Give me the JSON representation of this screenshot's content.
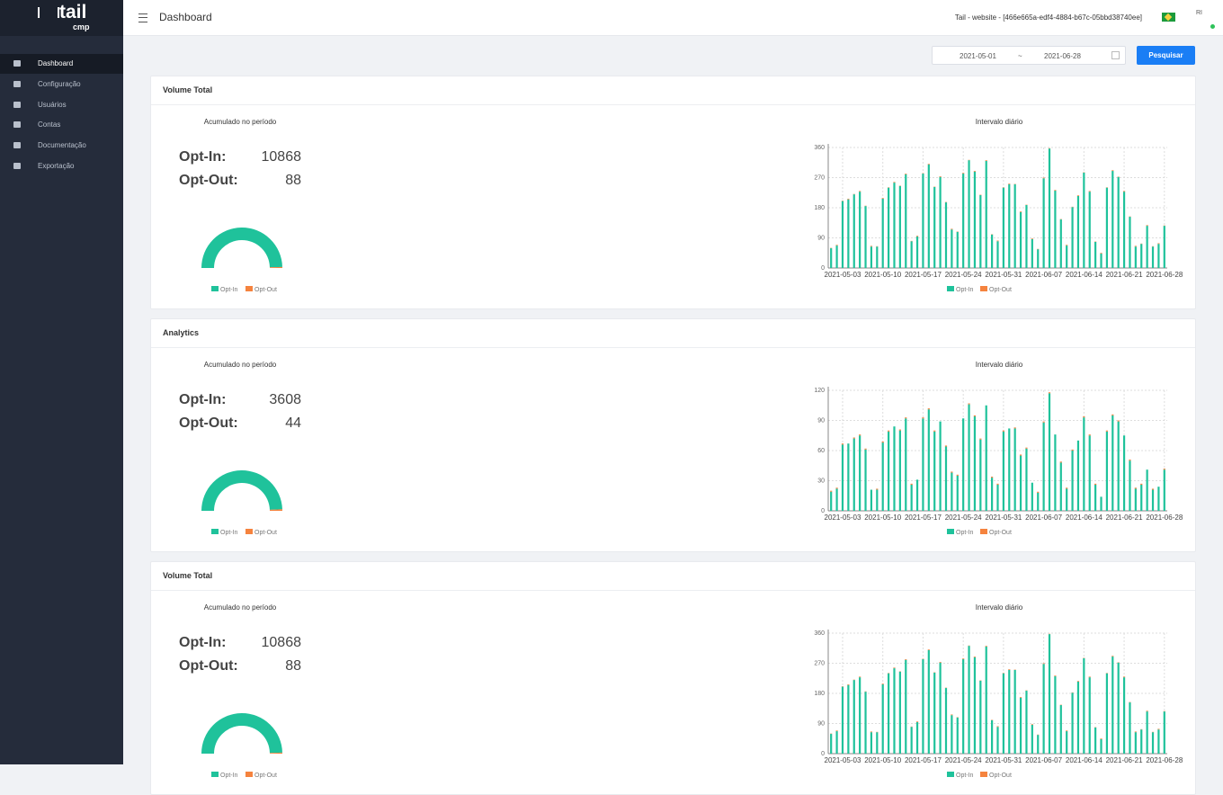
{
  "sidebar": {
    "brand": "tail",
    "brand_sub": "cmp",
    "nav": [
      "Dashboard",
      "Configuração",
      "Usuários",
      "Contas",
      "Documentação",
      "Exportação"
    ]
  },
  "header": {
    "title": "Dashboard",
    "site": "Tail - website - [466e665a-edf4-4884-b67c-05bbd38740ee]",
    "avatar": "RI"
  },
  "filter": {
    "start": "2021-05-01",
    "separator": "~",
    "end": "2021-06-28",
    "button": "Pesquisar"
  },
  "panels": [
    {
      "title": "Volume Total"
    },
    {
      "title": "Analytics"
    },
    {
      "title": "Volume Total"
    }
  ],
  "chart_data": [
    {
      "type": "gauge",
      "title": "Acumulado no período",
      "categories": [
        "Opt-In",
        "Opt-Out"
      ],
      "value_names": [
        "Opt-In:",
        "Opt-Out:"
      ],
      "values": [
        10868,
        88
      ],
      "colors": [
        "#1fc29b",
        "#f5833e"
      ]
    },
    {
      "type": "bar",
      "title": "Intervalo diário",
      "grid": true,
      "ylim": [
        0,
        360
      ],
      "yticks": [
        0,
        90,
        180,
        270,
        360
      ],
      "categories": [
        null,
        null,
        "2021-05-03",
        null,
        null,
        null,
        null,
        null,
        null,
        "2021-05-10",
        null,
        null,
        null,
        null,
        null,
        null,
        "2021-05-17",
        null,
        null,
        null,
        null,
        null,
        null,
        "2021-05-24",
        null,
        null,
        null,
        null,
        null,
        null,
        "2021-05-31",
        null,
        null,
        null,
        null,
        null,
        null,
        "2021-06-07",
        null,
        null,
        null,
        null,
        null,
        null,
        "2021-06-14",
        null,
        null,
        null,
        null,
        null,
        null,
        "2021-06-21",
        null,
        null,
        null,
        null,
        null,
        null,
        "2021-06-28"
      ],
      "series": [
        {
          "name": "Opt-In",
          "color": "#1fc29b",
          "values": [
            59,
            67,
            200,
            205,
            220,
            228,
            185,
            64,
            64,
            207,
            240,
            255,
            245,
            280,
            80,
            94,
            282,
            309,
            242,
            272,
            196,
            115,
            108,
            282,
            322,
            288,
            218,
            320,
            100,
            80,
            240,
            250,
            250,
            167,
            188,
            86,
            56,
            268,
            357,
            231,
            145,
            67,
            182,
            215,
            285,
            228,
            78,
            43,
            240,
            290,
            272,
            228,
            153,
            64,
            72,
            126,
            64,
            72,
            126
          ]
        },
        {
          "name": "Opt-Out",
          "color": "#f5833e",
          "values": [
            1,
            2,
            1,
            2,
            1,
            2,
            1,
            2,
            1,
            2,
            1,
            2,
            1,
            2,
            1,
            2,
            1,
            2,
            1,
            2,
            1,
            2,
            1,
            2,
            1,
            2,
            1,
            2,
            1,
            2,
            1,
            2,
            1,
            2,
            1,
            2,
            1,
            2,
            1,
            2,
            1,
            2,
            1,
            2,
            1,
            2,
            1,
            2,
            1,
            2,
            1,
            2,
            1,
            2,
            1,
            2,
            1,
            2,
            1
          ]
        }
      ]
    },
    {
      "type": "gauge",
      "title": "Acumulado no período",
      "categories": [
        "Opt-In",
        "Opt-Out"
      ],
      "value_names": [
        "Opt-In:",
        "Opt-Out:"
      ],
      "values": [
        3608,
        44
      ],
      "colors": [
        "#1fc29b",
        "#f5833e"
      ]
    },
    {
      "type": "bar",
      "title": "Intervalo diário",
      "grid": true,
      "ylim": [
        0,
        120
      ],
      "yticks": [
        0,
        30,
        60,
        90,
        120
      ],
      "categories": [
        null,
        null,
        "2021-05-03",
        null,
        null,
        null,
        null,
        null,
        null,
        "2021-05-10",
        null,
        null,
        null,
        null,
        null,
        null,
        "2021-05-17",
        null,
        null,
        null,
        null,
        null,
        null,
        "2021-05-24",
        null,
        null,
        null,
        null,
        null,
        null,
        "2021-05-31",
        null,
        null,
        null,
        null,
        null,
        null,
        "2021-06-07",
        null,
        null,
        null,
        null,
        null,
        null,
        "2021-06-14",
        null,
        null,
        null,
        null,
        null,
        null,
        "2021-06-21",
        null,
        null,
        null,
        null,
        null,
        null,
        "2021-06-28"
      ],
      "series": [
        {
          "name": "Opt-In",
          "color": "#1fc29b",
          "values": [
            19,
            22,
            66,
            67,
            72,
            75,
            61,
            21,
            21,
            68,
            79,
            84,
            80,
            92,
            26,
            31,
            92,
            101,
            79,
            89,
            64,
            38,
            35,
            92,
            106,
            94,
            71,
            105,
            33,
            26,
            79,
            82,
            82,
            55,
            62,
            28,
            18,
            88,
            117,
            76,
            48,
            22,
            60,
            70,
            93,
            75,
            26,
            14,
            79,
            95,
            89,
            75,
            50,
            22,
            26,
            41,
            21,
            24,
            41
          ]
        },
        {
          "name": "Opt-Out",
          "color": "#f5833e",
          "values": [
            1,
            1,
            1,
            0,
            1,
            1,
            1,
            0,
            1,
            1,
            1,
            0,
            1,
            1,
            1,
            0,
            1,
            1,
            1,
            0,
            1,
            1,
            1,
            0,
            1,
            1,
            1,
            0,
            1,
            1,
            1,
            0,
            1,
            1,
            1,
            0,
            1,
            1,
            1,
            0,
            1,
            1,
            1,
            0,
            1,
            1,
            1,
            0,
            1,
            1,
            1,
            0,
            1,
            1,
            1,
            0,
            1,
            0,
            1
          ]
        }
      ]
    },
    {
      "type": "gauge",
      "title": "Acumulado no período",
      "categories": [
        "Opt-In",
        "Opt-Out"
      ],
      "value_names": [
        "Opt-In:",
        "Opt-Out:"
      ],
      "values": [
        10868,
        88
      ],
      "colors": [
        "#1fc29b",
        "#f5833e"
      ]
    },
    {
      "type": "bar",
      "title": "Intervalo diário",
      "grid": true,
      "ylim": [
        0,
        360
      ],
      "yticks": [
        0,
        90,
        180,
        270,
        360
      ],
      "categories": [
        null,
        null,
        "2021-05-03",
        null,
        null,
        null,
        null,
        null,
        null,
        "2021-05-10",
        null,
        null,
        null,
        null,
        null,
        null,
        "2021-05-17",
        null,
        null,
        null,
        null,
        null,
        null,
        "2021-05-24",
        null,
        null,
        null,
        null,
        null,
        null,
        "2021-05-31",
        null,
        null,
        null,
        null,
        null,
        null,
        "2021-06-07",
        null,
        null,
        null,
        null,
        null,
        null,
        "2021-06-14",
        null,
        null,
        null,
        null,
        null,
        null,
        "2021-06-21",
        null,
        null,
        null,
        null,
        null,
        null,
        "2021-06-28"
      ],
      "series": [
        {
          "name": "Opt-In",
          "color": "#1fc29b",
          "values": [
            59,
            67,
            200,
            205,
            220,
            228,
            185,
            64,
            64,
            207,
            240,
            255,
            245,
            280,
            80,
            94,
            282,
            309,
            242,
            272,
            196,
            115,
            108,
            282,
            322,
            288,
            218,
            320,
            100,
            80,
            240,
            250,
            250,
            167,
            188,
            86,
            56,
            268,
            357,
            231,
            145,
            67,
            182,
            215,
            285,
            228,
            78,
            43,
            240,
            290,
            272,
            228,
            153,
            64,
            72,
            126,
            64,
            72,
            126
          ]
        },
        {
          "name": "Opt-Out",
          "color": "#f5833e",
          "values": [
            1,
            2,
            1,
            2,
            1,
            2,
            1,
            2,
            1,
            2,
            1,
            2,
            1,
            2,
            1,
            2,
            1,
            2,
            1,
            2,
            1,
            2,
            1,
            2,
            1,
            2,
            1,
            2,
            1,
            2,
            1,
            2,
            1,
            2,
            1,
            2,
            1,
            2,
            1,
            2,
            1,
            2,
            1,
            2,
            1,
            2,
            1,
            2,
            1,
            2,
            1,
            2,
            1,
            2,
            1,
            2,
            1,
            2,
            1
          ]
        }
      ]
    }
  ]
}
